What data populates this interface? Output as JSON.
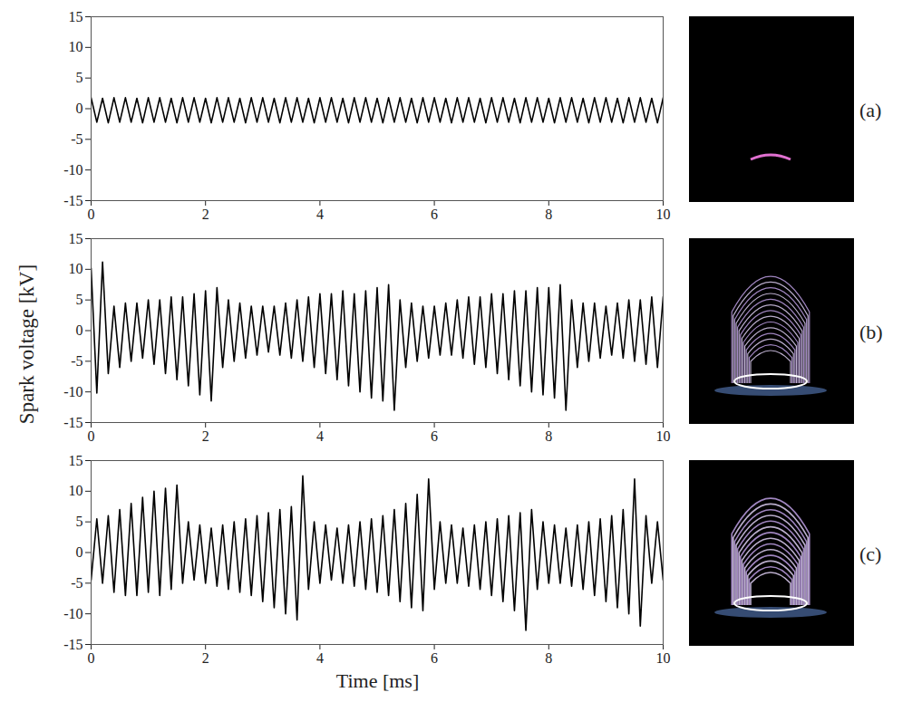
{
  "chart_data": [
    {
      "type": "line",
      "title": "(a)",
      "x": [
        0,
        0.1,
        0.2,
        0.3,
        0.4,
        0.5,
        0.6,
        0.7,
        0.8,
        0.9,
        1,
        1.1,
        1.2,
        1.3,
        1.4,
        1.5,
        1.6,
        1.7,
        1.8,
        1.9,
        2,
        2.1,
        2.2,
        2.3,
        2.4,
        2.5,
        2.6,
        2.7,
        2.8,
        2.9,
        3,
        3.1,
        3.2,
        3.3,
        3.4,
        3.5,
        3.6,
        3.7,
        3.8,
        3.9,
        4,
        4.1,
        4.2,
        4.3,
        4.4,
        4.5,
        4.6,
        4.7,
        4.8,
        4.9,
        5,
        5.1,
        5.2,
        5.3,
        5.4,
        5.5,
        5.6,
        5.7,
        5.8,
        5.9,
        6,
        6.1,
        6.2,
        6.3,
        6.4,
        6.5,
        6.6,
        6.7,
        6.8,
        6.9,
        7,
        7.1,
        7.2,
        7.3,
        7.4,
        7.5,
        7.6,
        7.7,
        7.8,
        7.9,
        8,
        8.1,
        8.2,
        8.3,
        8.4,
        8.5,
        8.6,
        8.7,
        8.8,
        8.9,
        9,
        9.1,
        9.2,
        9.3,
        9.4,
        9.5,
        9.6,
        9.7,
        9.8,
        9.9,
        10
      ],
      "values": [
        1.8,
        -2.2,
        1.7,
        -2.3,
        1.8,
        -2.2,
        1.8,
        -2.2,
        1.7,
        -2.3,
        1.8,
        -2.2,
        1.8,
        -2.2,
        1.7,
        -2.3,
        1.8,
        -2.2,
        1.8,
        -2.2,
        1.7,
        -2.3,
        1.8,
        -2.2,
        1.8,
        -2.2,
        1.7,
        -2.3,
        1.8,
        -2.2,
        1.8,
        -2.2,
        1.7,
        -2.3,
        1.8,
        -2.2,
        1.8,
        -2.2,
        1.7,
        -2.3,
        1.8,
        -2.2,
        1.8,
        -2.2,
        1.7,
        -2.3,
        1.8,
        -2.2,
        1.8,
        -2.2,
        1.7,
        -2.3,
        1.8,
        -2.2,
        1.8,
        -2.2,
        1.7,
        -2.3,
        1.8,
        -2.2,
        1.8,
        -2.2,
        1.7,
        -2.3,
        1.8,
        -2.2,
        1.8,
        -2.2,
        1.7,
        -2.3,
        1.8,
        -2.2,
        1.8,
        -2.2,
        1.7,
        -2.3,
        1.8,
        -2.2,
        1.8,
        -2.2,
        1.7,
        -2.3,
        1.8,
        -2.2,
        1.8,
        -2.2,
        1.7,
        -2.3,
        1.8,
        -2.2,
        1.8,
        -2.2,
        1.7,
        -2.3,
        1.8,
        -2.2,
        1.8,
        -2.2,
        1.7,
        -2.3,
        1.8
      ],
      "color": "#000000",
      "xlim": [
        0,
        10
      ],
      "xticks": [
        0,
        2,
        4,
        6,
        8,
        10
      ],
      "ylim": [
        -15,
        15
      ],
      "yticks": [
        -15,
        -10,
        -5,
        0,
        5,
        10,
        15
      ]
    },
    {
      "type": "line",
      "title": "(b)",
      "y_label": "Spark voltage [kV]",
      "x": [
        0,
        0.1,
        0.2,
        0.3,
        0.4,
        0.5,
        0.6,
        0.7,
        0.8,
        0.9,
        1,
        1.1,
        1.2,
        1.3,
        1.4,
        1.5,
        1.6,
        1.7,
        1.8,
        1.9,
        2,
        2.1,
        2.2,
        2.3,
        2.4,
        2.5,
        2.6,
        2.7,
        2.8,
        2.9,
        3,
        3.1,
        3.2,
        3.3,
        3.4,
        3.5,
        3.6,
        3.7,
        3.8,
        3.9,
        4,
        4.1,
        4.2,
        4.3,
        4.4,
        4.5,
        4.6,
        4.7,
        4.8,
        4.9,
        5,
        5.1,
        5.2,
        5.3,
        5.4,
        5.5,
        5.6,
        5.7,
        5.8,
        5.9,
        6,
        6.1,
        6.2,
        6.3,
        6.4,
        6.5,
        6.6,
        6.7,
        6.8,
        6.9,
        7,
        7.1,
        7.2,
        7.3,
        7.4,
        7.5,
        7.6,
        7.7,
        7.8,
        7.9,
        8,
        8.1,
        8.2,
        8.3,
        8.4,
        8.5,
        8.6,
        8.7,
        8.8,
        8.9,
        9,
        9.1,
        9.2,
        9.3,
        9.4,
        9.5,
        9.6,
        9.7,
        9.8,
        9.9,
        10
      ],
      "values": [
        10.2,
        -10.2,
        11.2,
        -7,
        4,
        -6,
        4.5,
        -5,
        4.5,
        -4.5,
        5,
        -5.5,
        5,
        -7,
        5.5,
        -8,
        5.5,
        -9,
        6,
        -10.5,
        6.5,
        -11.5,
        7,
        -6,
        5,
        -5,
        4.5,
        -4.5,
        4,
        -4,
        4,
        -3.5,
        4,
        -4,
        4.5,
        -4.5,
        5,
        -5,
        5.5,
        -6,
        6,
        -7,
        6,
        -8,
        6.5,
        -9,
        6,
        -10,
        6.5,
        -11,
        7,
        -11.5,
        7.5,
        -13,
        5,
        -6,
        4.5,
        -5,
        4,
        -4.5,
        4,
        -4,
        4.5,
        -4,
        5,
        -4.5,
        5.5,
        -5.5,
        5.5,
        -6,
        6,
        -7,
        6,
        -8,
        6.5,
        -9,
        6.5,
        -10,
        7,
        -10.5,
        7,
        -11,
        7.5,
        -13,
        5,
        -6,
        4.5,
        -5,
        4.5,
        -4.5,
        4,
        -4,
        4.5,
        -4.5,
        5,
        -5,
        5,
        -5.5,
        5.5,
        -6,
        5.5
      ],
      "color": "#000000",
      "xlim": [
        0,
        10
      ],
      "xticks": [
        0,
        2,
        4,
        6,
        8,
        10
      ],
      "ylim": [
        -15,
        15
      ],
      "yticks": [
        -15,
        -10,
        -5,
        0,
        5,
        10,
        15
      ]
    },
    {
      "type": "line",
      "title": "(c)",
      "x_label": "Time [ms]",
      "x": [
        0,
        0.1,
        0.2,
        0.3,
        0.4,
        0.5,
        0.6,
        0.7,
        0.8,
        0.9,
        1,
        1.1,
        1.2,
        1.3,
        1.4,
        1.5,
        1.6,
        1.7,
        1.8,
        1.9,
        2,
        2.1,
        2.2,
        2.3,
        2.4,
        2.5,
        2.6,
        2.7,
        2.8,
        2.9,
        3,
        3.1,
        3.2,
        3.3,
        3.4,
        3.5,
        3.6,
        3.7,
        3.8,
        3.9,
        4,
        4.1,
        4.2,
        4.3,
        4.4,
        4.5,
        4.6,
        4.7,
        4.8,
        4.9,
        5,
        5.1,
        5.2,
        5.3,
        5.4,
        5.5,
        5.6,
        5.7,
        5.8,
        5.9,
        6,
        6.1,
        6.2,
        6.3,
        6.4,
        6.5,
        6.6,
        6.7,
        6.8,
        6.9,
        7,
        7.1,
        7.2,
        7.3,
        7.4,
        7.5,
        7.6,
        7.7,
        7.8,
        7.9,
        8,
        8.1,
        8.2,
        8.3,
        8.4,
        8.5,
        8.6,
        8.7,
        8.8,
        8.9,
        9,
        9.1,
        9.2,
        9.3,
        9.4,
        9.5,
        9.6,
        9.7,
        9.8,
        9.9,
        10
      ],
      "values": [
        -4.5,
        5.5,
        -5,
        6,
        -6.5,
        7,
        -7,
        8,
        -7,
        9,
        -6.5,
        10,
        -7,
        10.5,
        -6,
        11,
        -5,
        5,
        -4.5,
        4.5,
        -5,
        4,
        -5.5,
        4.5,
        -6,
        5,
        -6.5,
        5.5,
        -7,
        6,
        -8,
        6.5,
        -9,
        7,
        -10,
        7.5,
        -11,
        12.5,
        -6,
        5,
        -5,
        4.5,
        -4.5,
        4,
        -5,
        4.5,
        -5.5,
        5,
        -6,
        5.5,
        -6.5,
        6,
        -7,
        7,
        -8,
        8,
        -9,
        9.5,
        -9.5,
        12,
        -6,
        5,
        -5,
        4.5,
        -5,
        4,
        -5.5,
        4.5,
        -6,
        5,
        -7,
        5.5,
        -8,
        6,
        -9.5,
        6.5,
        -12.7,
        7,
        -6,
        5,
        -5,
        4.5,
        -5,
        4,
        -5.5,
        4.5,
        -6,
        5,
        -7,
        5.5,
        -8,
        6,
        -9,
        7,
        -10,
        12,
        -12,
        6,
        -5,
        5,
        -4.5
      ],
      "color": "#000000",
      "xlim": [
        0,
        10
      ],
      "xticks": [
        0,
        2,
        4,
        6,
        8,
        10
      ],
      "ylim": [
        -15,
        15
      ],
      "yticks": [
        -15,
        -10,
        -5,
        0,
        5,
        10,
        15
      ]
    }
  ]
}
